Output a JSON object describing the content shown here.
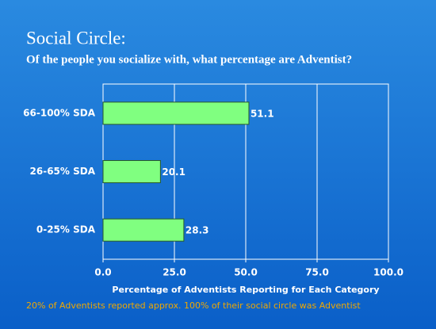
{
  "chart_data": {
    "type": "barh",
    "title": "Social Circle:",
    "subtitle": "Of the people you socialize with, what percentage are Adventist?",
    "xlabel": "Percentage of Adventists Reporting for Each Category",
    "annotation": "20% of Adventists reported approx. 100% of their social circle was Adventist",
    "categories": [
      "66-100% SDA",
      "26-65% SDA",
      "0-25% SDA"
    ],
    "values": [
      51.1,
      20.1,
      28.3
    ],
    "color": "#80ff80",
    "xlim": [
      0,
      100
    ],
    "xticks": [
      {
        "value": 0,
        "label": "0.0"
      },
      {
        "value": 25,
        "label": "25.0"
      },
      {
        "value": 50,
        "label": "50.0"
      },
      {
        "value": 75,
        "label": "75.0"
      },
      {
        "value": 100,
        "label": "100.0"
      }
    ],
    "grid": true
  }
}
